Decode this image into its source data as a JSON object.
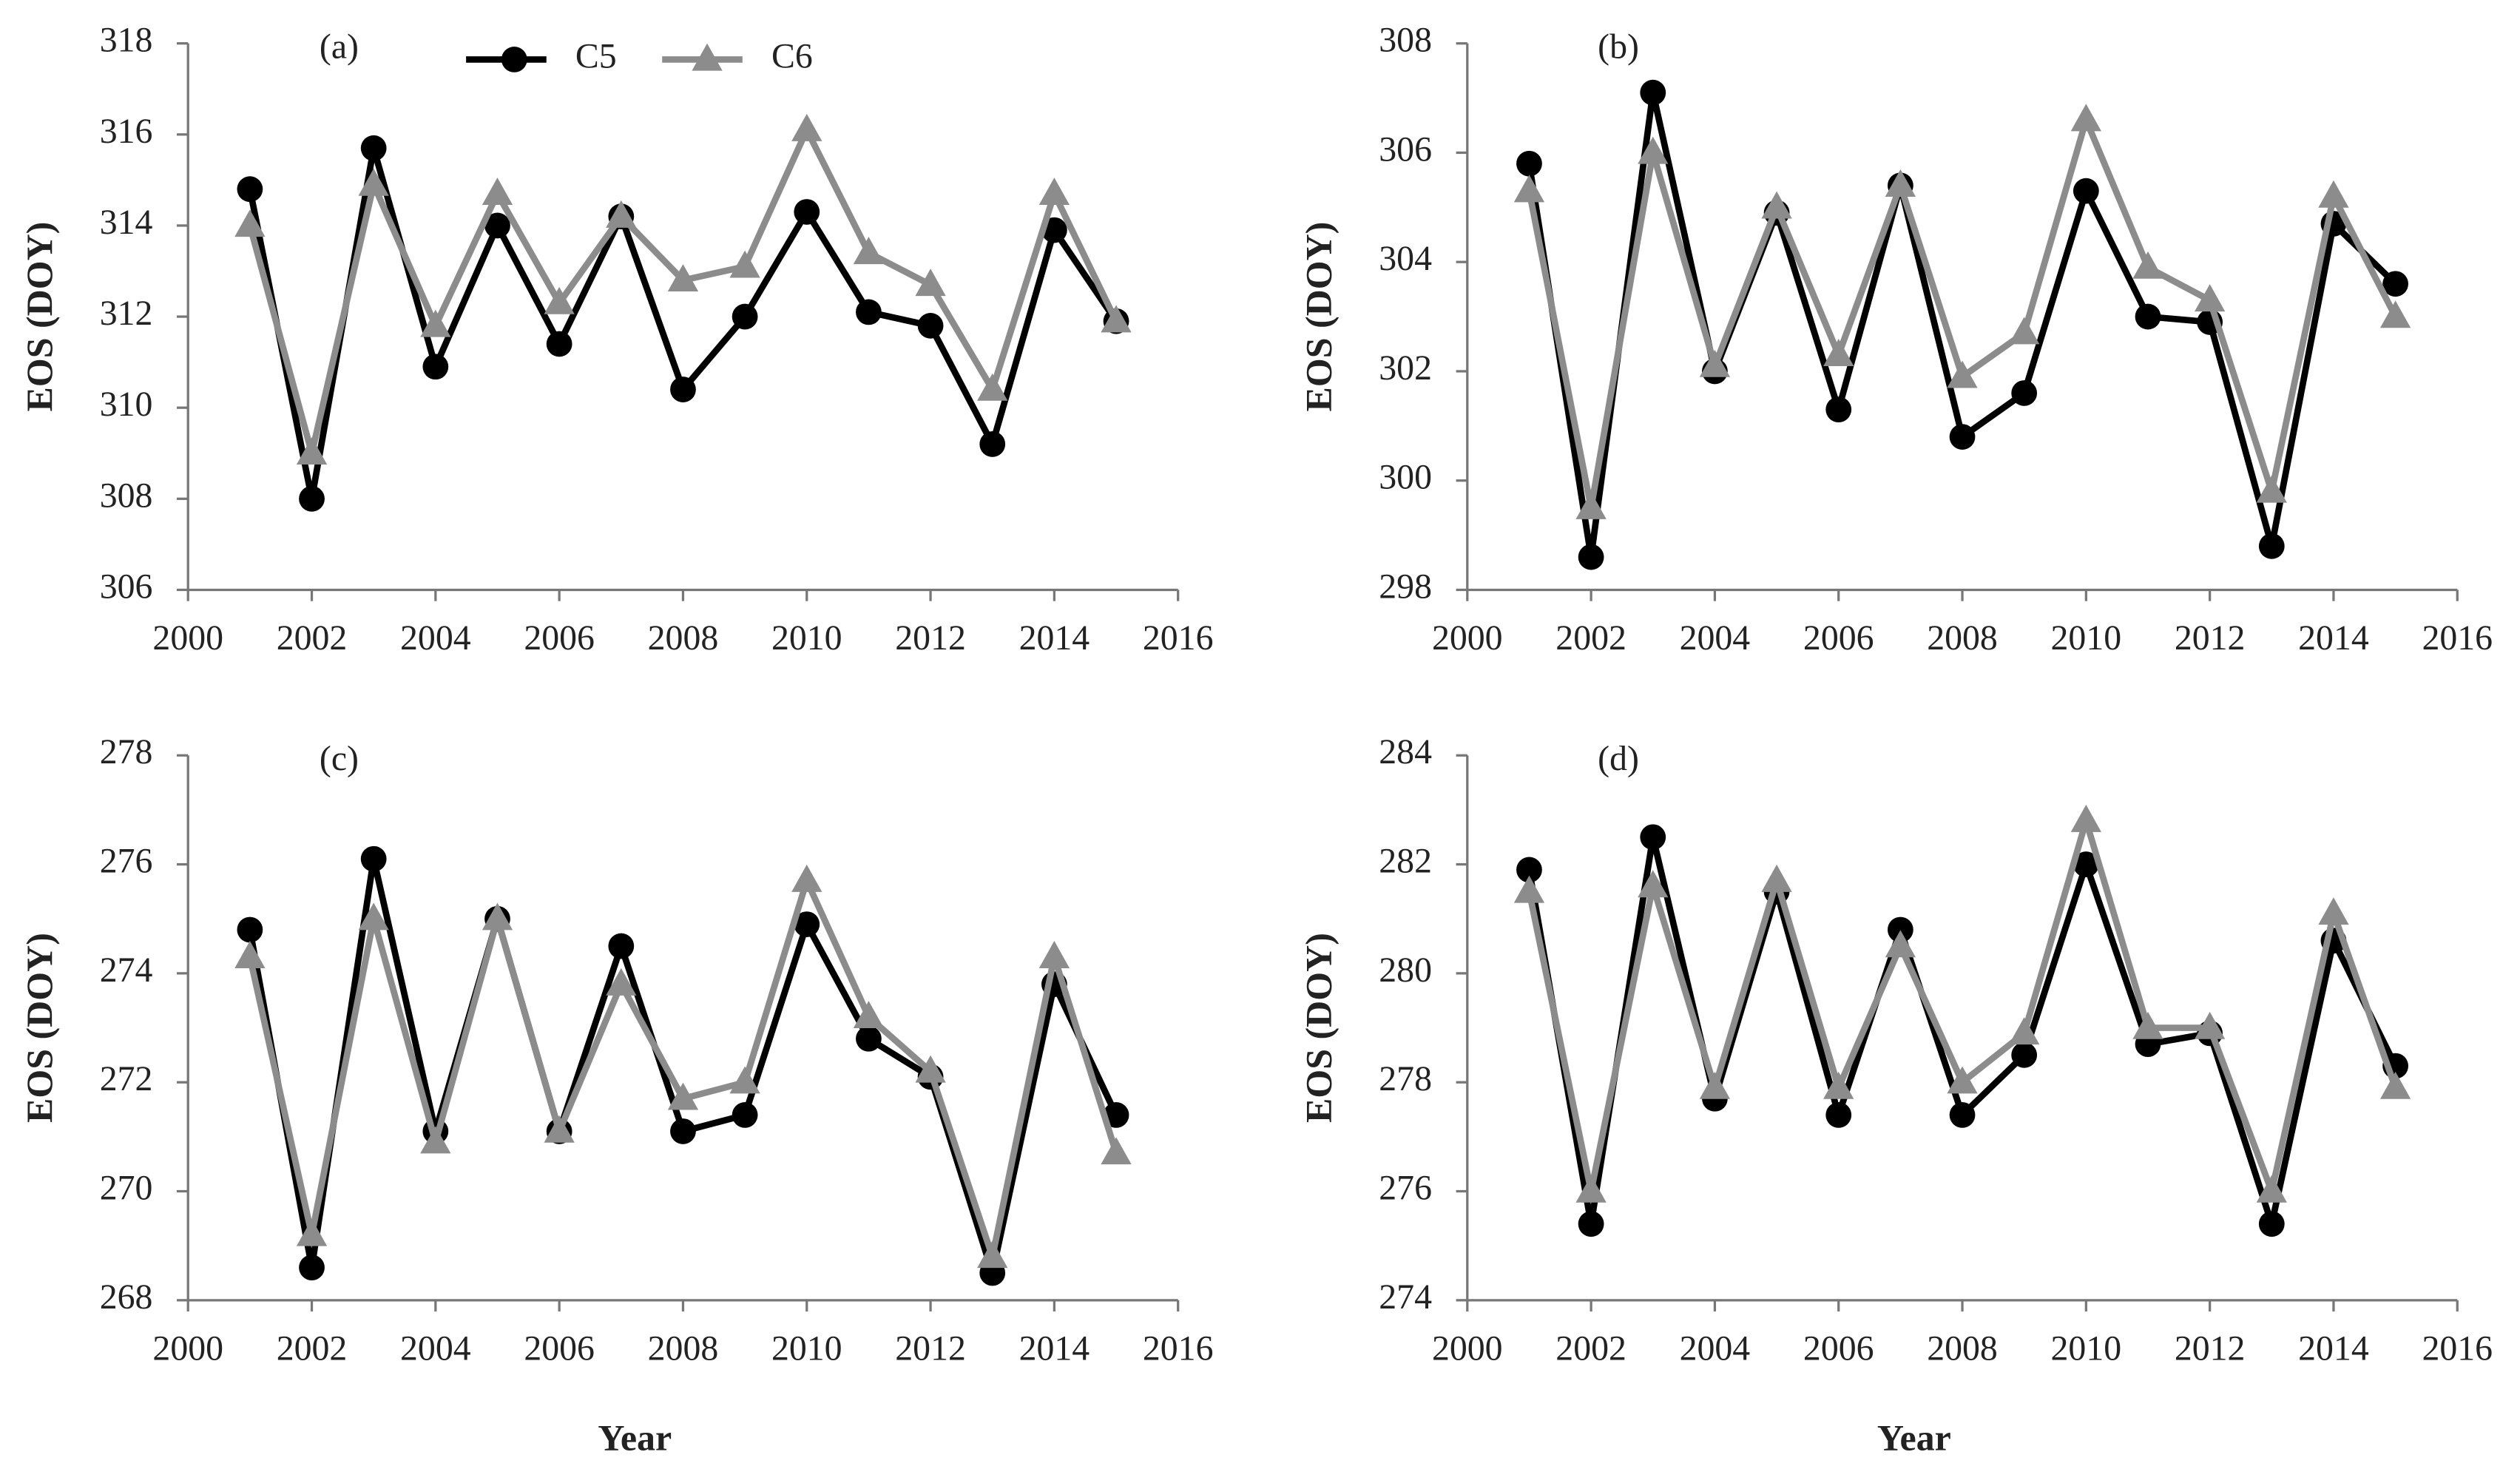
{
  "chart_data": [
    {
      "type": "line",
      "label": "(a)",
      "ylabel": "EOS (DOY)",
      "legend": true,
      "x": [
        2001,
        2002,
        2003,
        2004,
        2005,
        2006,
        2007,
        2008,
        2009,
        2010,
        2011,
        2012,
        2013,
        2014,
        2015
      ],
      "xlim": [
        2000,
        2016
      ],
      "xticks": [
        2000,
        2002,
        2004,
        2006,
        2008,
        2010,
        2012,
        2014,
        2016
      ],
      "ylim": [
        306,
        318
      ],
      "yticks": [
        306,
        308,
        310,
        312,
        314,
        316,
        318
      ],
      "series": [
        {
          "name": "C5",
          "color": "#000000",
          "marker": "circle",
          "values": [
            314.8,
            308.0,
            315.7,
            310.9,
            314.0,
            311.4,
            314.2,
            310.4,
            312.0,
            314.3,
            312.1,
            311.8,
            309.2,
            313.9,
            311.9
          ]
        },
        {
          "name": "C6",
          "color": "#8c8c8c",
          "marker": "triangle",
          "values": [
            314.0,
            309.0,
            314.9,
            311.8,
            314.7,
            312.3,
            314.2,
            312.8,
            313.1,
            316.1,
            313.4,
            312.7,
            310.4,
            314.7,
            311.9
          ]
        }
      ]
    },
    {
      "type": "line",
      "label": "(b)",
      "ylabel": "EOS (DOY)",
      "x": [
        2001,
        2002,
        2003,
        2004,
        2005,
        2006,
        2007,
        2008,
        2009,
        2010,
        2011,
        2012,
        2013,
        2014,
        2015
      ],
      "xlim": [
        2000,
        2016
      ],
      "xticks": [
        2000,
        2002,
        2004,
        2006,
        2008,
        2010,
        2012,
        2014,
        2016
      ],
      "ylim": [
        298,
        308
      ],
      "yticks": [
        298,
        300,
        302,
        304,
        306,
        308
      ],
      "series": [
        {
          "color": "#000000",
          "marker": "circle",
          "values": [
            305.8,
            298.6,
            307.1,
            302.0,
            304.9,
            301.3,
            305.4,
            300.8,
            301.6,
            305.3,
            303.0,
            302.9,
            298.8,
            304.7,
            303.6
          ]
        },
        {
          "color": "#8c8c8c",
          "marker": "triangle",
          "values": [
            305.3,
            299.5,
            306.0,
            302.1,
            305.0,
            302.3,
            305.4,
            301.9,
            302.7,
            306.6,
            303.9,
            303.3,
            299.8,
            305.2,
            303.0
          ]
        }
      ]
    },
    {
      "type": "line",
      "label": "(c)",
      "ylabel": "EOS (DOY)",
      "xlabel": "Year",
      "x": [
        2001,
        2002,
        2003,
        2004,
        2005,
        2006,
        2007,
        2008,
        2009,
        2010,
        2011,
        2012,
        2013,
        2014,
        2015
      ],
      "xlim": [
        2000,
        2016
      ],
      "xticks": [
        2000,
        2002,
        2004,
        2006,
        2008,
        2010,
        2012,
        2014,
        2016
      ],
      "ylim": [
        268,
        278
      ],
      "yticks": [
        268,
        270,
        272,
        274,
        276,
        278
      ],
      "series": [
        {
          "color": "#000000",
          "marker": "circle",
          "values": [
            274.8,
            268.6,
            276.1,
            271.1,
            275.0,
            271.1,
            274.5,
            271.1,
            271.4,
            274.9,
            272.8,
            272.1,
            268.5,
            273.8,
            271.4
          ]
        },
        {
          "color": "#8c8c8c",
          "marker": "triangle",
          "values": [
            274.3,
            269.2,
            275.0,
            270.9,
            275.0,
            271.1,
            273.8,
            271.7,
            272.0,
            275.7,
            273.2,
            272.2,
            268.8,
            274.3,
            270.7
          ]
        }
      ]
    },
    {
      "type": "line",
      "label": "(d)",
      "ylabel": "EOS (DOY)",
      "xlabel": "Year",
      "x": [
        2001,
        2002,
        2003,
        2004,
        2005,
        2006,
        2007,
        2008,
        2009,
        2010,
        2011,
        2012,
        2013,
        2014,
        2015
      ],
      "xlim": [
        2000,
        2016
      ],
      "xticks": [
        2000,
        2002,
        2004,
        2006,
        2008,
        2010,
        2012,
        2014,
        2016
      ],
      "ylim": [
        274,
        284
      ],
      "yticks": [
        274,
        276,
        278,
        280,
        282,
        284
      ],
      "series": [
        {
          "color": "#000000",
          "marker": "circle",
          "values": [
            281.9,
            275.4,
            282.5,
            277.7,
            281.5,
            277.4,
            280.8,
            277.4,
            278.5,
            282.0,
            278.7,
            278.9,
            275.4,
            280.6,
            278.3
          ]
        },
        {
          "color": "#8c8c8c",
          "marker": "triangle",
          "values": [
            281.5,
            276.0,
            281.6,
            277.9,
            281.7,
            277.9,
            280.5,
            278.0,
            278.9,
            282.8,
            279.0,
            279.0,
            276.0,
            281.1,
            277.9
          ]
        }
      ]
    }
  ]
}
